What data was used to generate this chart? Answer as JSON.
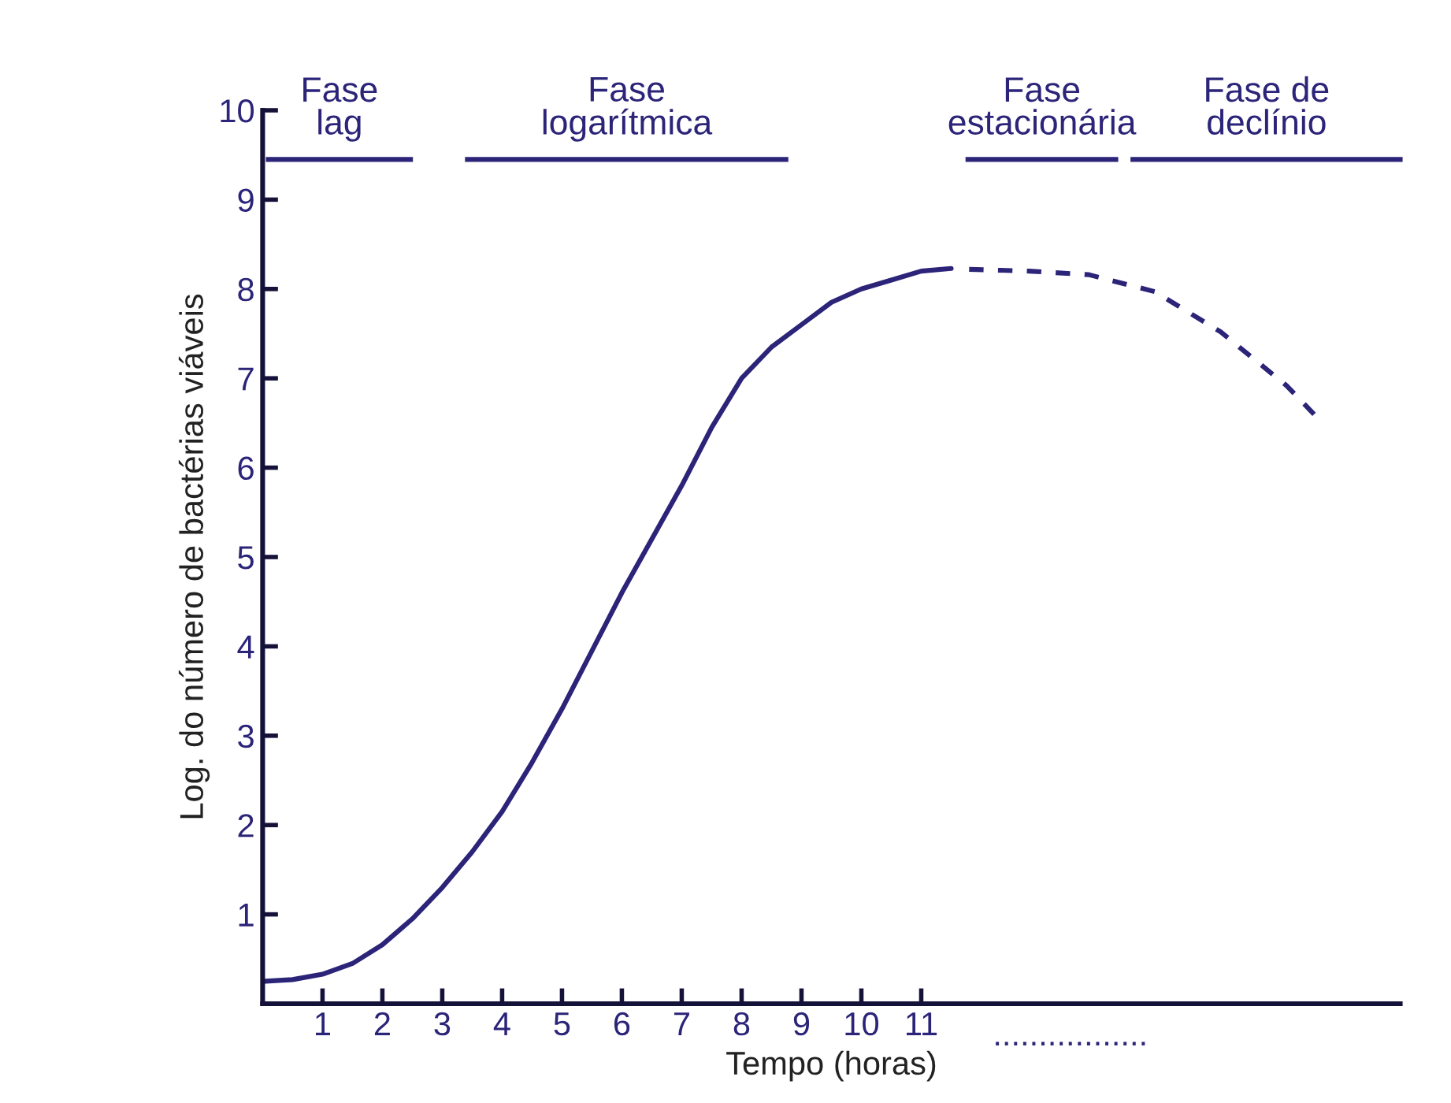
{
  "chart_data": {
    "type": "line",
    "xlabel": "Tempo (horas)",
    "ylabel": "Log. do número de bactérias viáveis",
    "xlim": [
      0,
      19
    ],
    "ylim": [
      0,
      10
    ],
    "xticks": [
      1,
      2,
      3,
      4,
      5,
      6,
      7,
      8,
      9,
      10,
      11
    ],
    "yticks": [
      1,
      2,
      3,
      4,
      5,
      6,
      7,
      8,
      9,
      10
    ],
    "grid": false,
    "legend": false,
    "marker": "none",
    "series": [
      {
        "color": "#2b2478",
        "line_style": "solid",
        "x": [
          0,
          0.5,
          1,
          1.5,
          2,
          2.5,
          3,
          3.5,
          4,
          4.5,
          5,
          5.5,
          6,
          6.5,
          7,
          7.5,
          8,
          8.5,
          9,
          9.5,
          10,
          10.5,
          11,
          11.5
        ],
        "values": [
          0.25,
          0.27,
          0.33,
          0.45,
          0.66,
          0.95,
          1.3,
          1.7,
          2.15,
          2.7,
          3.3,
          3.95,
          4.6,
          5.2,
          5.8,
          6.45,
          7.0,
          7.35,
          7.6,
          7.85,
          8.0,
          8.1,
          8.2,
          8.23
        ]
      },
      {
        "color": "#2b2478",
        "line_style": "dashed",
        "x": [
          11.8,
          12.8,
          13.8,
          14.9,
          16.0,
          17.1,
          17.6
        ],
        "values": [
          8.22,
          8.2,
          8.16,
          7.97,
          7.52,
          6.92,
          6.57
        ]
      }
    ],
    "annotations": [
      "Fase\nlag",
      "Fase\nlogarítmica",
      "Fase\nestacionária",
      "Fase de\ndeclínio",
      "................."
    ]
  }
}
